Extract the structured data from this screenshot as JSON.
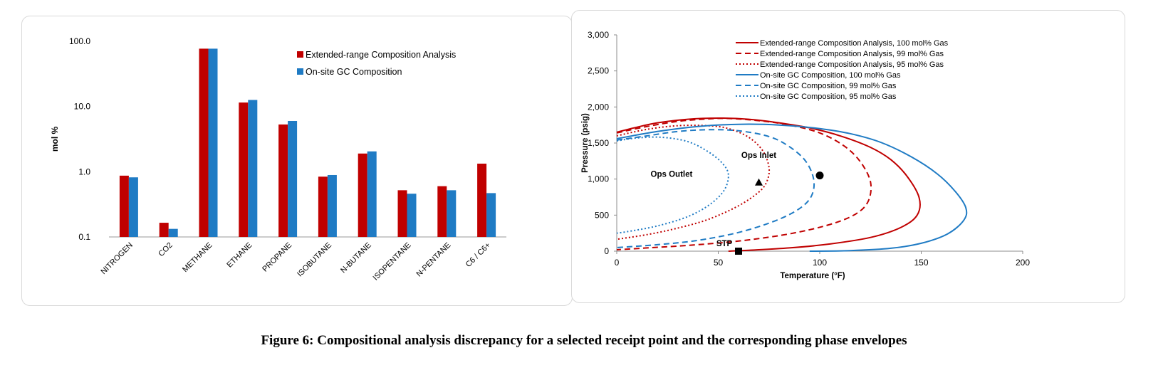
{
  "caption": "Figure 6: Compositional analysis discrepancy for a selected receipt point and the corresponding phase envelopes",
  "colors": {
    "red": "#c00000",
    "blue": "#1f7bc4"
  },
  "chart_data": [
    {
      "type": "bar",
      "scale": "log",
      "ylabel": "mol %",
      "ylim": [
        0.1,
        100
      ],
      "yticks": [
        "0.1",
        "1.0",
        "10.0",
        "100.0"
      ],
      "grid": false,
      "legend_position": "top-right",
      "categories": [
        "NITROGEN",
        "CO2",
        "METHANE",
        "ETHANE",
        "PROPANE",
        "ISOBUTANE",
        "N-BUTANE",
        "ISOPENTANE",
        "N-PENTANE",
        "C6 / C6+"
      ],
      "series": [
        {
          "name": "Extended-range Composition Analysis",
          "color": "#c00000",
          "values": [
            0.87,
            0.165,
            77,
            11.5,
            5.3,
            0.84,
            1.9,
            0.52,
            0.6,
            1.33
          ]
        },
        {
          "name": "On-site GC Composition",
          "color": "#1f7bc4",
          "values": [
            0.82,
            0.133,
            77,
            12.6,
            6.0,
            0.89,
            2.05,
            0.46,
            0.52,
            0.47
          ]
        }
      ]
    },
    {
      "type": "line",
      "xlabel": "Temperature (°F)",
      "ylabel": "Pressure (psig)",
      "xlim": [
        0,
        200
      ],
      "ylim": [
        0,
        3000
      ],
      "xticks": [
        "0",
        "50",
        "100",
        "150",
        "200"
      ],
      "yticks": [
        "0",
        "500",
        "1,000",
        "1,500",
        "2,000",
        "2,500",
        "3,000"
      ],
      "grid": false,
      "legend_position": "top",
      "series": [
        {
          "name": "Extended-range Composition Analysis, 100 mol% Gas",
          "color": "#c00000",
          "dash": "solid",
          "points": [
            [
              0,
              1650
            ],
            [
              10,
              1720
            ],
            [
              20,
              1780
            ],
            [
              35,
              1830
            ],
            [
              50,
              1845
            ],
            [
              65,
              1830
            ],
            [
              80,
              1780
            ],
            [
              95,
              1710
            ],
            [
              110,
              1600
            ],
            [
              125,
              1440
            ],
            [
              135,
              1270
            ],
            [
              143,
              1040
            ],
            [
              149,
              740
            ],
            [
              148,
              500
            ],
            [
              140,
              330
            ],
            [
              125,
              190
            ],
            [
              105,
              100
            ],
            [
              85,
              45
            ],
            [
              65,
              12
            ],
            [
              55,
              0
            ]
          ]
        },
        {
          "name": "Extended-range Composition Analysis, 99 mol% Gas",
          "color": "#c00000",
          "dash": "dashed",
          "points": [
            [
              0,
              1640
            ],
            [
              15,
              1730
            ],
            [
              30,
              1800
            ],
            [
              45,
              1835
            ],
            [
              55,
              1840
            ],
            [
              70,
              1810
            ],
            [
              85,
              1750
            ],
            [
              100,
              1640
            ],
            [
              112,
              1460
            ],
            [
              120,
              1240
            ],
            [
              125,
              960
            ],
            [
              124,
              700
            ],
            [
              118,
              520
            ],
            [
              105,
              370
            ],
            [
              85,
              240
            ],
            [
              60,
              140
            ],
            [
              35,
              80
            ],
            [
              15,
              45
            ],
            [
              0,
              20
            ]
          ]
        },
        {
          "name": "Extended-range Composition Analysis, 95 mol% Gas",
          "color": "#c00000",
          "dash": "dotted",
          "points": [
            [
              0,
              1600
            ],
            [
              15,
              1690
            ],
            [
              30,
              1740
            ],
            [
              45,
              1740
            ],
            [
              55,
              1700
            ],
            [
              65,
              1580
            ],
            [
              72,
              1390
            ],
            [
              75,
              1160
            ],
            [
              74,
              970
            ],
            [
              70,
              820
            ],
            [
              60,
              630
            ],
            [
              45,
              440
            ],
            [
              30,
              320
            ],
            [
              15,
              230
            ],
            [
              0,
              165
            ]
          ]
        },
        {
          "name": "On-site GC Composition, 100 mol% Gas",
          "color": "#1f7bc4",
          "dash": "solid",
          "points": [
            [
              0,
              1560
            ],
            [
              20,
              1660
            ],
            [
              40,
              1730
            ],
            [
              60,
              1760
            ],
            [
              80,
              1750
            ],
            [
              100,
              1700
            ],
            [
              115,
              1630
            ],
            [
              130,
              1510
            ],
            [
              145,
              1310
            ],
            [
              158,
              1070
            ],
            [
              167,
              820
            ],
            [
              172,
              600
            ],
            [
              171,
              430
            ],
            [
              163,
              240
            ],
            [
              150,
              110
            ],
            [
              135,
              40
            ],
            [
              115,
              8
            ],
            [
              95,
              0
            ]
          ]
        },
        {
          "name": "On-site GC Composition, 99 mol% Gas",
          "color": "#1f7bc4",
          "dash": "dashed",
          "points": [
            [
              0,
              1540
            ],
            [
              15,
              1600
            ],
            [
              30,
              1660
            ],
            [
              45,
              1685
            ],
            [
              60,
              1670
            ],
            [
              75,
              1590
            ],
            [
              85,
              1450
            ],
            [
              93,
              1250
            ],
            [
              97,
              1000
            ],
            [
              96,
              770
            ],
            [
              90,
              590
            ],
            [
              78,
              420
            ],
            [
              60,
              260
            ],
            [
              40,
              150
            ],
            [
              20,
              90
            ],
            [
              0,
              50
            ]
          ]
        },
        {
          "name": "On-site GC Composition, 95 mol% Gas",
          "color": "#1f7bc4",
          "dash": "dotted",
          "points": [
            [
              0,
              1530
            ],
            [
              10,
              1570
            ],
            [
              22,
              1580
            ],
            [
              35,
              1520
            ],
            [
              45,
              1380
            ],
            [
              52,
              1220
            ],
            [
              55,
              1060
            ],
            [
              53,
              850
            ],
            [
              46,
              650
            ],
            [
              35,
              480
            ],
            [
              20,
              350
            ],
            [
              5,
              270
            ],
            [
              0,
              250
            ]
          ]
        }
      ],
      "markers": [
        {
          "shape": "triangle",
          "x": 70,
          "y": 950
        },
        {
          "shape": "circle",
          "x": 100,
          "y": 1050
        },
        {
          "shape": "square",
          "x": 60,
          "y": 0
        }
      ],
      "annotations": [
        {
          "text": "Ops Outlet",
          "x": 27,
          "y": 1070
        },
        {
          "text": "Ops Inlet",
          "x": 70,
          "y": 1330
        },
        {
          "text": "STP",
          "x": 53,
          "y": 110
        }
      ]
    }
  ]
}
